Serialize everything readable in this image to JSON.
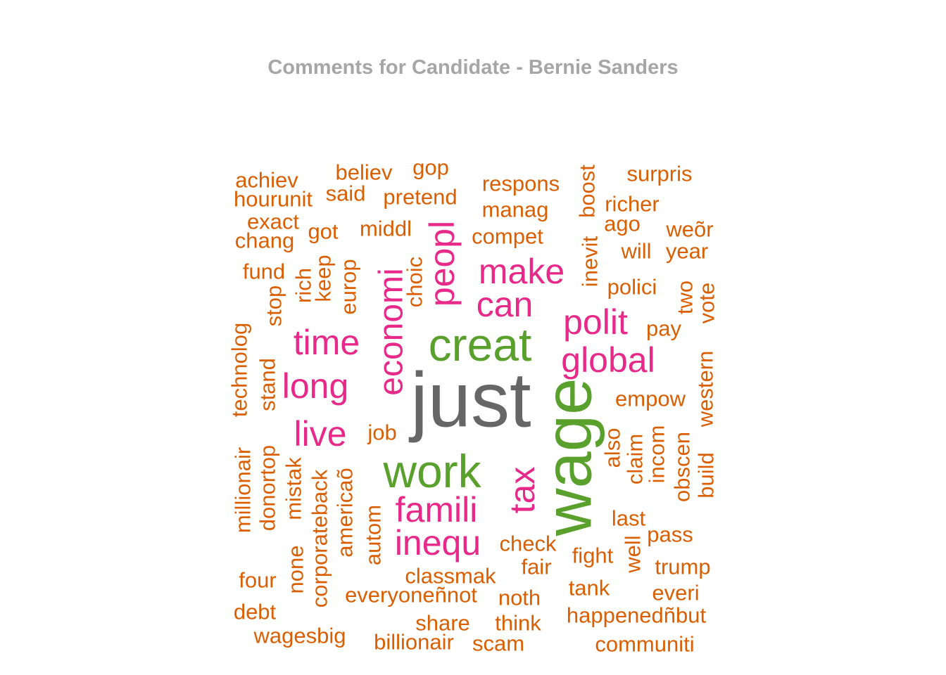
{
  "title": "Comments for Candidate - Bernie Sanders",
  "chart_data": {
    "type": "wordcloud",
    "title": "Comments for Candidate - Bernie Sanders",
    "colors": {
      "top": "#666666",
      "second": "#5aa02c",
      "third": "#e7298a",
      "rest": "#d95f02"
    },
    "words": [
      {
        "text": "just",
        "tier": "top",
        "rotated": false
      },
      {
        "text": "creat",
        "tier": "second",
        "rotated": false
      },
      {
        "text": "work",
        "tier": "second",
        "rotated": false
      },
      {
        "text": "wage",
        "tier": "second",
        "rotated": true
      },
      {
        "text": "economi",
        "tier": "third",
        "rotated": true
      },
      {
        "text": "peopl",
        "tier": "third",
        "rotated": true
      },
      {
        "text": "make",
        "tier": "third",
        "rotated": false
      },
      {
        "text": "can",
        "tier": "third",
        "rotated": false
      },
      {
        "text": "polit",
        "tier": "third",
        "rotated": false
      },
      {
        "text": "time",
        "tier": "third",
        "rotated": false
      },
      {
        "text": "global",
        "tier": "third",
        "rotated": false
      },
      {
        "text": "long",
        "tier": "third",
        "rotated": false
      },
      {
        "text": "live",
        "tier": "third",
        "rotated": false
      },
      {
        "text": "tax",
        "tier": "third",
        "rotated": true
      },
      {
        "text": "famili",
        "tier": "third",
        "rotated": false
      },
      {
        "text": "inequ",
        "tier": "third",
        "rotated": false
      },
      {
        "text": "achiev",
        "tier": "rest",
        "rotated": false
      },
      {
        "text": "believ",
        "tier": "rest",
        "rotated": false
      },
      {
        "text": "gop",
        "tier": "rest",
        "rotated": false
      },
      {
        "text": "respons",
        "tier": "rest",
        "rotated": false
      },
      {
        "text": "boost",
        "tier": "rest",
        "rotated": true
      },
      {
        "text": "surpris",
        "tier": "rest",
        "rotated": false
      },
      {
        "text": "hourunit",
        "tier": "rest",
        "rotated": false
      },
      {
        "text": "said",
        "tier": "rest",
        "rotated": false
      },
      {
        "text": "pretend",
        "tier": "rest",
        "rotated": false
      },
      {
        "text": "manag",
        "tier": "rest",
        "rotated": false
      },
      {
        "text": "richer",
        "tier": "rest",
        "rotated": false
      },
      {
        "text": "exact",
        "tier": "rest",
        "rotated": false
      },
      {
        "text": "got",
        "tier": "rest",
        "rotated": false
      },
      {
        "text": "middl",
        "tier": "rest",
        "rotated": false
      },
      {
        "text": "compet",
        "tier": "rest",
        "rotated": false
      },
      {
        "text": "ago",
        "tier": "rest",
        "rotated": false
      },
      {
        "text": "weõr",
        "tier": "rest",
        "rotated": false
      },
      {
        "text": "chang",
        "tier": "rest",
        "rotated": false
      },
      {
        "text": "inevit",
        "tier": "rest",
        "rotated": true
      },
      {
        "text": "will",
        "tier": "rest",
        "rotated": false
      },
      {
        "text": "year",
        "tier": "rest",
        "rotated": false
      },
      {
        "text": "fund",
        "tier": "rest",
        "rotated": false
      },
      {
        "text": "rich",
        "tier": "rest",
        "rotated": true
      },
      {
        "text": "keep",
        "tier": "rest",
        "rotated": true
      },
      {
        "text": "europ",
        "tier": "rest",
        "rotated": true
      },
      {
        "text": "choic",
        "tier": "rest",
        "rotated": true
      },
      {
        "text": "polici",
        "tier": "rest",
        "rotated": false
      },
      {
        "text": "two",
        "tier": "rest",
        "rotated": true
      },
      {
        "text": "vote",
        "tier": "rest",
        "rotated": true
      },
      {
        "text": "stop",
        "tier": "rest",
        "rotated": true
      },
      {
        "text": "pay",
        "tier": "rest",
        "rotated": false
      },
      {
        "text": "technolog",
        "tier": "rest",
        "rotated": true
      },
      {
        "text": "stand",
        "tier": "rest",
        "rotated": true
      },
      {
        "text": "western",
        "tier": "rest",
        "rotated": true
      },
      {
        "text": "empow",
        "tier": "rest",
        "rotated": false
      },
      {
        "text": "job",
        "tier": "rest",
        "rotated": false
      },
      {
        "text": "also",
        "tier": "rest",
        "rotated": true
      },
      {
        "text": "claim",
        "tier": "rest",
        "rotated": true
      },
      {
        "text": "incom",
        "tier": "rest",
        "rotated": true
      },
      {
        "text": "obscen",
        "tier": "rest",
        "rotated": true
      },
      {
        "text": "build",
        "tier": "rest",
        "rotated": true
      },
      {
        "text": "millionair",
        "tier": "rest",
        "rotated": true
      },
      {
        "text": "donortop",
        "tier": "rest",
        "rotated": true
      },
      {
        "text": "mistak",
        "tier": "rest",
        "rotated": true
      },
      {
        "text": "corporateback",
        "tier": "rest",
        "rotated": true
      },
      {
        "text": "americaõ",
        "tier": "rest",
        "rotated": true
      },
      {
        "text": "autom",
        "tier": "rest",
        "rotated": true
      },
      {
        "text": "last",
        "tier": "rest",
        "rotated": false
      },
      {
        "text": "well",
        "tier": "rest",
        "rotated": true
      },
      {
        "text": "pass",
        "tier": "rest",
        "rotated": false
      },
      {
        "text": "check",
        "tier": "rest",
        "rotated": false
      },
      {
        "text": "none",
        "tier": "rest",
        "rotated": true
      },
      {
        "text": "fight",
        "tier": "rest",
        "rotated": false
      },
      {
        "text": "fair",
        "tier": "rest",
        "rotated": false
      },
      {
        "text": "trump",
        "tier": "rest",
        "rotated": false
      },
      {
        "text": "four",
        "tier": "rest",
        "rotated": false
      },
      {
        "text": "classmak",
        "tier": "rest",
        "rotated": false
      },
      {
        "text": "tank",
        "tier": "rest",
        "rotated": false
      },
      {
        "text": "everi",
        "tier": "rest",
        "rotated": false
      },
      {
        "text": "everyoneñnot",
        "tier": "rest",
        "rotated": false
      },
      {
        "text": "noth",
        "tier": "rest",
        "rotated": false
      },
      {
        "text": "debt",
        "tier": "rest",
        "rotated": false
      },
      {
        "text": "share",
        "tier": "rest",
        "rotated": false
      },
      {
        "text": "happenedñbut",
        "tier": "rest",
        "rotated": false
      },
      {
        "text": "think",
        "tier": "rest",
        "rotated": false
      },
      {
        "text": "wagesbig",
        "tier": "rest",
        "rotated": false
      },
      {
        "text": "billionair",
        "tier": "rest",
        "rotated": false
      },
      {
        "text": "scam",
        "tier": "rest",
        "rotated": false
      },
      {
        "text": "communiti",
        "tier": "rest",
        "rotated": false
      }
    ]
  }
}
